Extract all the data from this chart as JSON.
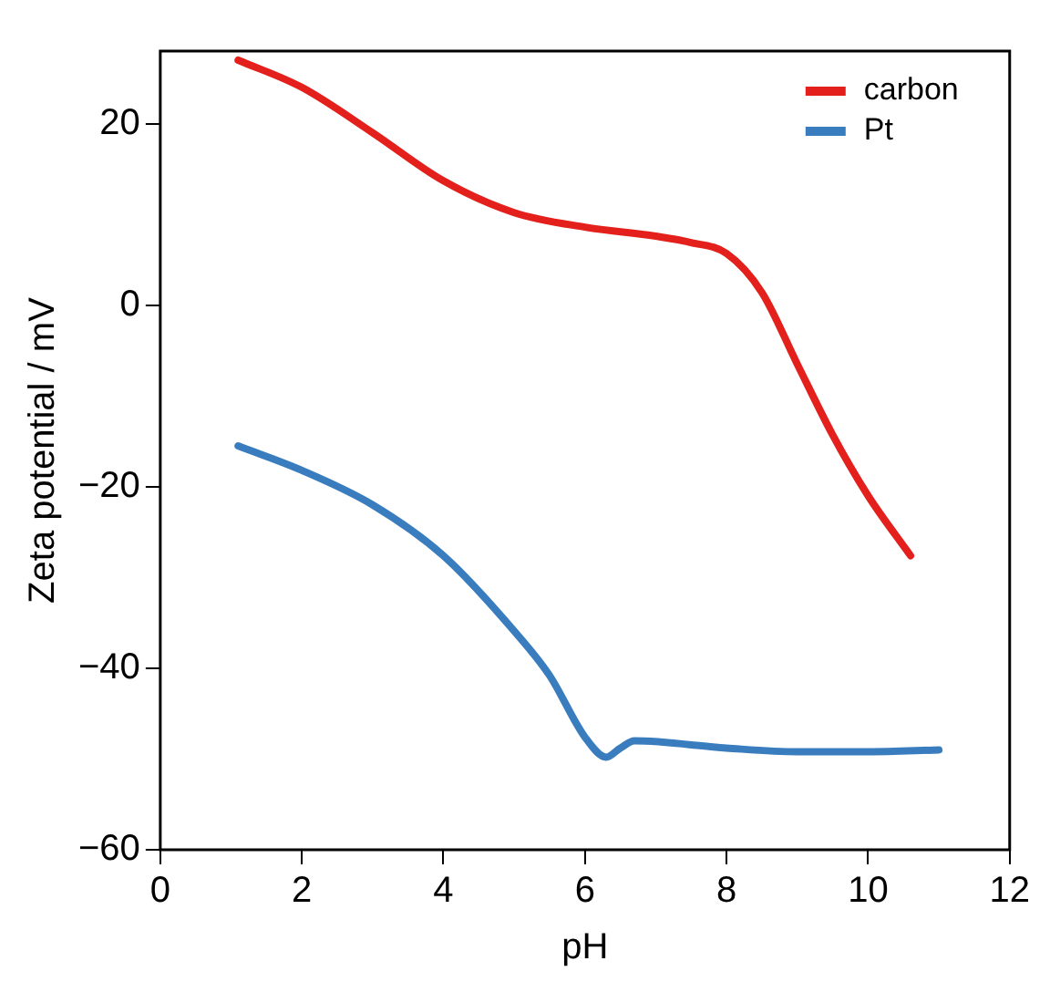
{
  "chart_data": {
    "type": "line",
    "xlabel": "pH",
    "ylabel": "Zeta potential / mV",
    "xlim": [
      0,
      12
    ],
    "xticks": [
      0,
      2,
      4,
      6,
      8,
      10,
      12
    ],
    "ylim": [
      -60,
      28
    ],
    "yticks": [
      -60,
      -40,
      -20,
      0,
      20
    ],
    "grid": false,
    "legend": "top right",
    "marker": "none",
    "line_style": "solid",
    "series": [
      {
        "name": "carbon",
        "color": "#e3201b",
        "x": [
          1.1,
          2,
          3,
          4,
          5,
          6,
          7,
          7.5,
          8,
          8.5,
          9,
          9.5,
          10,
          10.6
        ],
        "values": [
          27,
          24,
          19,
          13.7,
          10.2,
          8.6,
          7.6,
          6.9,
          5.7,
          1.4,
          -6.5,
          -14.3,
          -21,
          -27.6
        ]
      },
      {
        "name": "Pt",
        "color": "#3a7dbf",
        "x": [
          1.1,
          2,
          3,
          4,
          5,
          5.5,
          6,
          6.3,
          6.5,
          6.7,
          8,
          9,
          10,
          11
        ],
        "values": [
          -15.5,
          -18.2,
          -22,
          -27.6,
          -35.9,
          -40.8,
          -47.6,
          -49.8,
          -48.8,
          -48,
          -48.8,
          -49.2,
          -49.2,
          -49
        ]
      }
    ]
  }
}
